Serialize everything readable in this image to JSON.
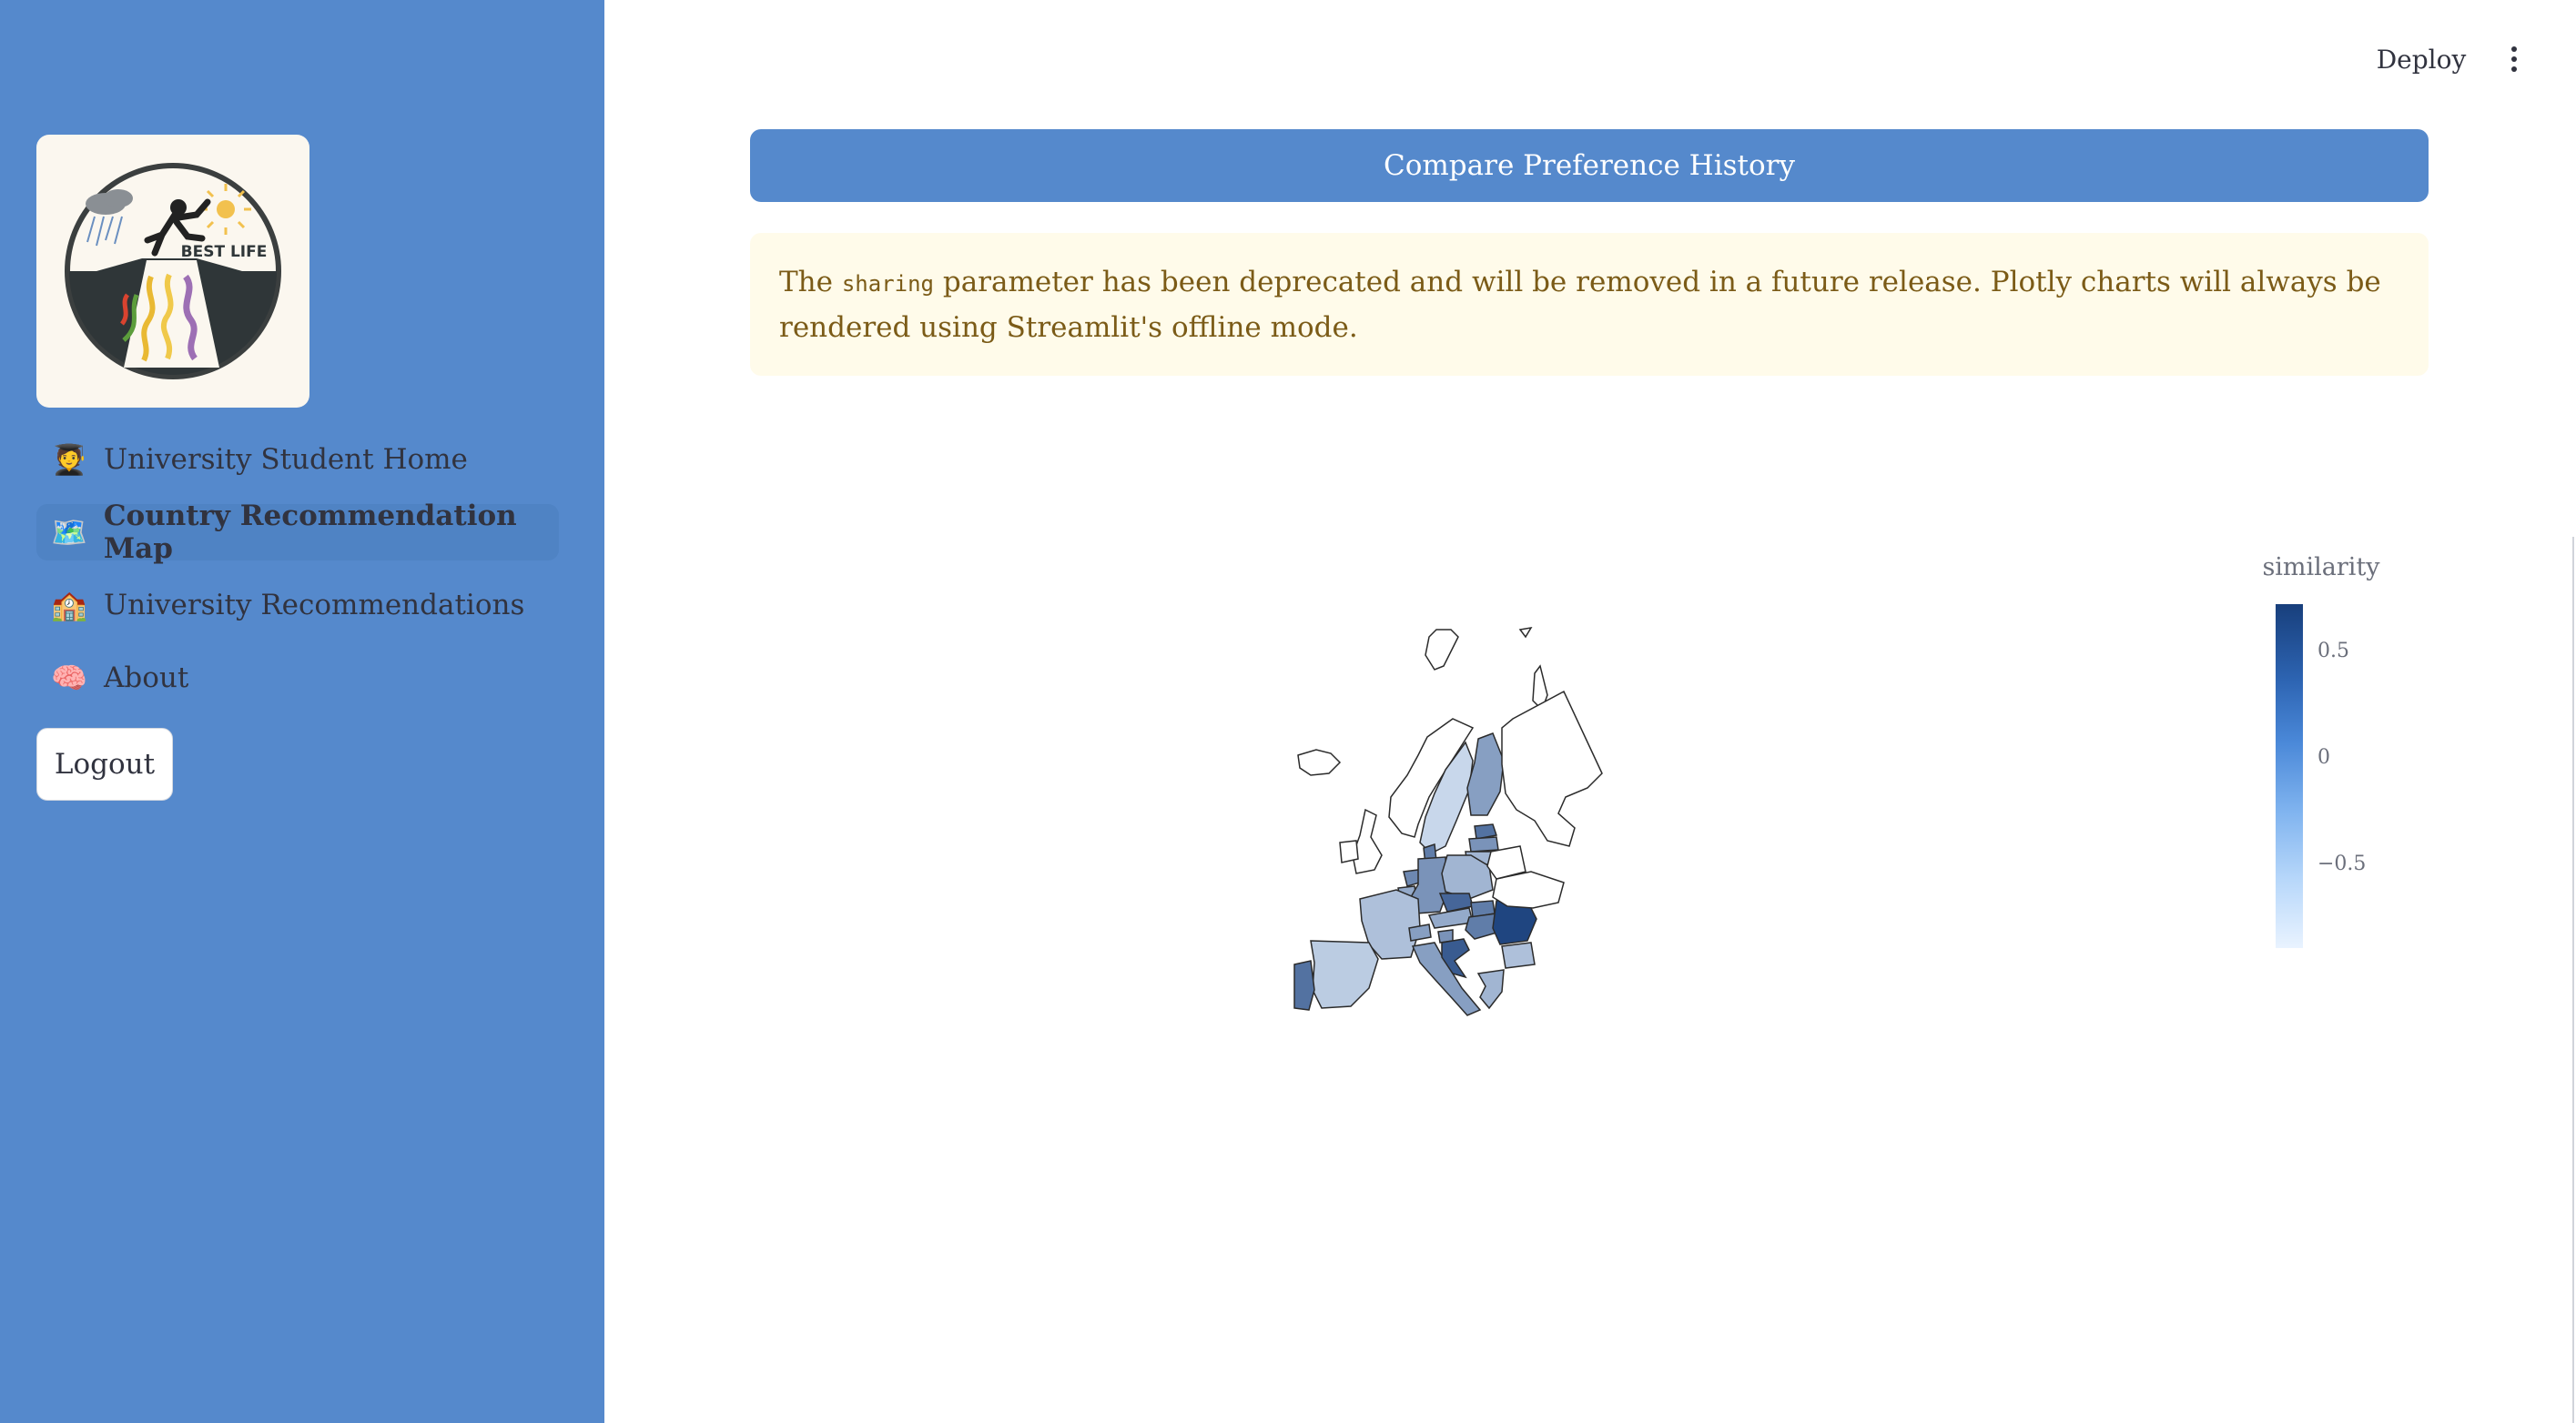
{
  "sidebar": {
    "logo_text": "BEST LIFE",
    "items": [
      {
        "icon": "🧑‍🎓",
        "icon_name": "graduate-icon",
        "label": "University Student Home"
      },
      {
        "icon": "🗺️",
        "icon_name": "map-icon",
        "label": "Country Recommendation Map"
      },
      {
        "icon": "🏫",
        "icon_name": "school-icon",
        "label": "University Recommendations"
      },
      {
        "icon": "🧠",
        "icon_name": "brain-icon",
        "label": "About"
      }
    ],
    "logout_label": "Logout",
    "active_index": 1
  },
  "header": {
    "deploy_label": "Deploy"
  },
  "main": {
    "compare_button_label": "Compare Preference History",
    "warning": {
      "text_before": "The ",
      "code": "sharing",
      "text_after": " parameter has been deprecated and will be removed in a future release. Plotly charts will always be rendered using Streamlit's offline mode."
    }
  },
  "chart_data": {
    "type": "heatmap",
    "title": "",
    "colorbar_title": "similarity",
    "colorbar_ticks": [
      "0.5",
      "0",
      "−0.5"
    ],
    "colorbar_range": [
      -0.85,
      0.75
    ],
    "colorscale": [
      "#e9f3ff",
      "#183f7c"
    ],
    "countries": [
      {
        "name": "Iceland",
        "value": null
      },
      {
        "name": "Norway",
        "value": null
      },
      {
        "name": "Sweden",
        "value": -0.6
      },
      {
        "name": "Finland",
        "value": -0.1
      },
      {
        "name": "Estonia",
        "value": 0.3
      },
      {
        "name": "Latvia",
        "value": 0.0
      },
      {
        "name": "Lithuania",
        "value": -0.3
      },
      {
        "name": "Denmark",
        "value": 0.2
      },
      {
        "name": "United Kingdom",
        "value": null
      },
      {
        "name": "Ireland",
        "value": null
      },
      {
        "name": "Netherlands",
        "value": 0.1
      },
      {
        "name": "Belgium",
        "value": -0.2
      },
      {
        "name": "Germany",
        "value": 0.0
      },
      {
        "name": "Poland",
        "value": -0.3
      },
      {
        "name": "France",
        "value": -0.4
      },
      {
        "name": "Switzerland",
        "value": -0.1
      },
      {
        "name": "Austria",
        "value": -0.2
      },
      {
        "name": "Czechia",
        "value": 0.4
      },
      {
        "name": "Slovakia",
        "value": 0.2
      },
      {
        "name": "Hungary",
        "value": 0.2
      },
      {
        "name": "Romania",
        "value": 0.7
      },
      {
        "name": "Bulgaria",
        "value": -0.4
      },
      {
        "name": "Spain",
        "value": -0.5
      },
      {
        "name": "Portugal",
        "value": 0.3
      },
      {
        "name": "Italy",
        "value": -0.1
      },
      {
        "name": "Slovenia",
        "value": 0.0
      },
      {
        "name": "Croatia",
        "value": 0.5
      },
      {
        "name": "Greece",
        "value": -0.3
      },
      {
        "name": "Ukraine",
        "value": null
      },
      {
        "name": "Belarus",
        "value": null
      },
      {
        "name": "Russia",
        "value": null
      }
    ]
  }
}
